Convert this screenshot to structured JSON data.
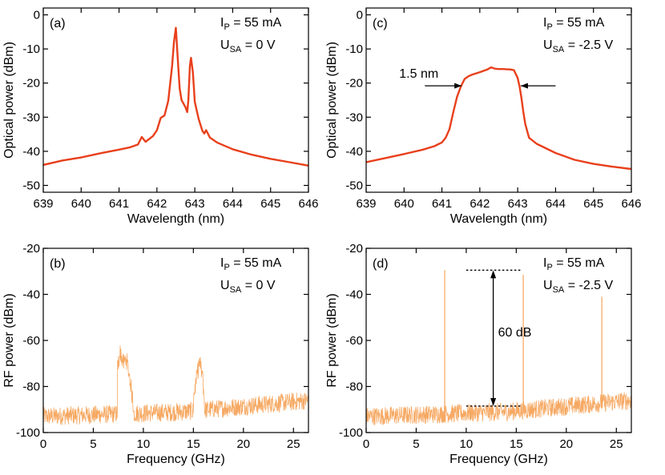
{
  "chart_data": [
    {
      "panel": "(a)",
      "type": "line",
      "title": "",
      "xlabel": "Wavelength (nm)",
      "ylabel": "Optical power (dBm)",
      "xlim": [
        639,
        646
      ],
      "ylim": [
        -52,
        2
      ],
      "xticks": [
        639,
        640,
        641,
        642,
        643,
        644,
        645,
        646
      ],
      "yticks": [
        0,
        -10,
        -20,
        -30,
        -40,
        -50
      ],
      "grid": false,
      "annotation": {
        "line1_main": "I",
        "line1_sub": "P",
        "line1_rest": " = 55 mA",
        "line2_main": "U",
        "line2_sub": "SA",
        "line2_rest": " = 0 V"
      },
      "series": [
        {
          "color": "#e8401c",
          "x": [
            639.0,
            639.5,
            640.0,
            640.5,
            641.0,
            641.3,
            641.5,
            641.6,
            641.7,
            641.9,
            642.0,
            642.1,
            642.2,
            642.3,
            642.4,
            642.45,
            642.5,
            642.55,
            642.6,
            642.65,
            642.7,
            642.75,
            642.8,
            642.83,
            642.87,
            642.9,
            642.95,
            643.0,
            643.1,
            643.2,
            643.25,
            643.3,
            643.4,
            643.6,
            644.0,
            644.5,
            645.0,
            645.5,
            646.0
          ],
          "y": [
            -44.0,
            -42.7,
            -41.8,
            -40.6,
            -39.5,
            -38.8,
            -38.0,
            -35.8,
            -37.2,
            -35.5,
            -33.8,
            -30.2,
            -29.5,
            -25.2,
            -15.0,
            -8.0,
            -3.8,
            -13.0,
            -21.5,
            -25.0,
            -26.0,
            -27.0,
            -28.5,
            -25.0,
            -15.0,
            -12.6,
            -17.0,
            -25.5,
            -30.5,
            -34.0,
            -34.8,
            -33.8,
            -36.0,
            -37.5,
            -39.4,
            -41.0,
            -42.2,
            -43.2,
            -44.2
          ]
        }
      ]
    },
    {
      "panel": "(c)",
      "type": "line",
      "title": "",
      "xlabel": "Wavelength (nm)",
      "ylabel": "Optical power (dBm)",
      "xlim": [
        639,
        646
      ],
      "ylim": [
        -52,
        2
      ],
      "xticks": [
        639,
        640,
        641,
        642,
        643,
        644,
        645,
        646
      ],
      "yticks": [
        0,
        -10,
        -20,
        -30,
        -40,
        -50
      ],
      "grid": false,
      "annotation": {
        "line1_main": "I",
        "line1_sub": "P",
        "line1_rest": " = 55 mA",
        "line2_main": "U",
        "line2_sub": "SA",
        "line2_rest": " = -2.5 V"
      },
      "width_label": "1.5 nm",
      "width_arrows": {
        "left_x": [
          640.55,
          641.52
        ],
        "right_x": [
          644.0,
          643.08
        ],
        "y": -20.8
      },
      "series": [
        {
          "color": "#e8401c",
          "x": [
            639.0,
            639.5,
            640.0,
            640.5,
            640.8,
            641.0,
            641.1,
            641.2,
            641.3,
            641.4,
            641.5,
            641.6,
            641.7,
            641.8,
            642.0,
            642.2,
            642.3,
            642.4,
            642.5,
            642.6,
            642.8,
            642.9,
            643.0,
            643.05,
            643.1,
            643.15,
            643.2,
            643.3,
            643.5,
            644.0,
            644.5,
            645.0,
            645.5,
            646.0
          ],
          "y": [
            -43.2,
            -42.0,
            -40.8,
            -39.5,
            -38.5,
            -37.4,
            -36.0,
            -33.5,
            -28.5,
            -24.0,
            -21.0,
            -18.8,
            -18.0,
            -17.5,
            -16.8,
            -16.0,
            -15.4,
            -15.8,
            -15.9,
            -15.9,
            -16.0,
            -16.2,
            -18.5,
            -21.0,
            -24.5,
            -28.5,
            -32.0,
            -36.0,
            -37.8,
            -40.5,
            -42.5,
            -43.7,
            -44.5,
            -45.2
          ]
        }
      ]
    },
    {
      "panel": "(b)",
      "type": "line",
      "title": "",
      "xlabel": "Frequency (GHz)",
      "ylabel": "RF power (dBm)",
      "xlim": [
        0,
        26.5
      ],
      "ylim": [
        -100,
        -20
      ],
      "xticks": [
        0,
        5,
        10,
        15,
        20,
        25
      ],
      "yticks": [
        -20,
        -40,
        -60,
        -80,
        -100
      ],
      "grid": false,
      "annotation": {
        "line1_main": "I",
        "line1_sub": "P",
        "line1_rest": " = 55 mA",
        "line2_main": "U",
        "line2_sub": "SA",
        "line2_rest": " = 0 V"
      },
      "noise_floor_dBm": [
        -94,
        -89
      ],
      "noise_floor_x": [
        0,
        14,
        26.5
      ],
      "noise_floor_y": [
        -93,
        -91,
        -86
      ],
      "series": [
        {
          "color": "#f5a45b",
          "x": [
            7.4,
            7.7,
            8.0,
            8.3,
            8.6,
            9.0,
            15.0,
            15.3,
            15.6,
            15.9,
            16.1
          ],
          "y": [
            -72,
            -65,
            -70,
            -68,
            -75,
            -88,
            -85,
            -77,
            -69,
            -75,
            -86
          ]
        }
      ]
    },
    {
      "panel": "(d)",
      "type": "line",
      "title": "",
      "xlabel": "Frequency (GHz)",
      "ylabel": "RF power (dBm)",
      "xlim": [
        0,
        26.5
      ],
      "ylim": [
        -100,
        -20
      ],
      "xticks": [
        0,
        5,
        10,
        15,
        20,
        25
      ],
      "yticks": [
        -20,
        -40,
        -60,
        -80,
        -100
      ],
      "grid": false,
      "annotation": {
        "line1_main": "I",
        "line1_sub": "P",
        "line1_rest": " = 55 mA",
        "line2_main": "U",
        "line2_sub": "SA",
        "line2_rest": " = -2.5 V"
      },
      "dynamic_range_label": "60 dB",
      "dynamic_range": {
        "top_dBm": -29.5,
        "bottom_dBm": -88.5,
        "dotted_x": [
          10,
          15.5
        ],
        "arrow_x": 12.7
      },
      "noise_floor_x": [
        0,
        14,
        26.5
      ],
      "noise_floor_y": [
        -93,
        -91,
        -86
      ],
      "series": [
        {
          "color": "#f5a45b",
          "peaks_x": [
            7.85,
            15.7,
            23.55
          ],
          "peaks_y": [
            -29.5,
            -31.5,
            -41.0
          ]
        }
      ]
    }
  ]
}
